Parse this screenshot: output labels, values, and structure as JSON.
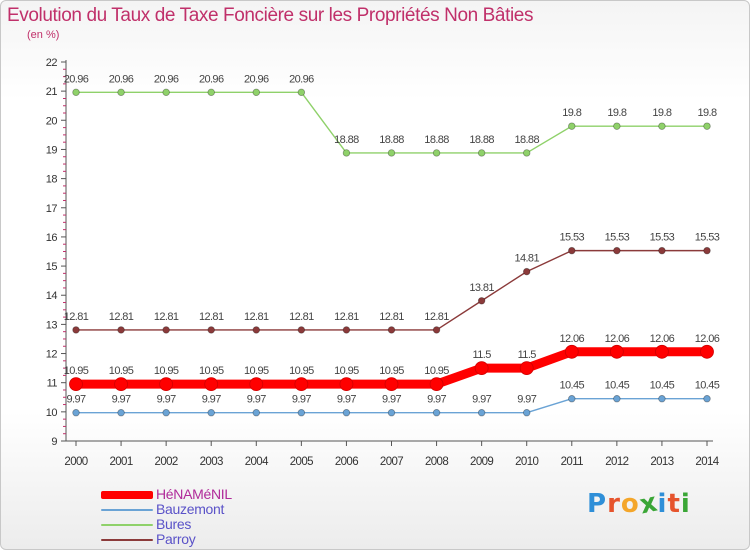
{
  "title": "Evolution du Taux de Taxe Foncière sur les Propriétés Non Bâties",
  "subtitle": "(en %)",
  "colors": {
    "accent": "#c0306a",
    "axis": "#555555",
    "tick_text": "#333333"
  },
  "chart_data": {
    "type": "line",
    "title": "Evolution du Taux de Taxe Foncière sur les Propriétés Non Bâties",
    "ylabel": "(en %)",
    "xlabel": "",
    "x": [
      "2000",
      "2001",
      "2002",
      "2003",
      "2004",
      "2005",
      "2006",
      "2007",
      "2008",
      "2009",
      "2010",
      "2011",
      "2012",
      "2013",
      "2014"
    ],
    "ylim": [
      9,
      22
    ],
    "yticks": [
      "9",
      "10",
      "11",
      "12",
      "13",
      "14",
      "15",
      "16",
      "17",
      "18",
      "19",
      "20",
      "21",
      "22"
    ],
    "grid": false,
    "legend_position": "bottom-left",
    "series": [
      {
        "name": "HéNAMéNIL",
        "color": "#ff0000",
        "values": [
          10.95,
          10.95,
          10.95,
          10.95,
          10.95,
          10.95,
          10.95,
          10.95,
          10.95,
          11.5,
          11.5,
          12.06,
          12.06,
          12.06,
          12.06
        ],
        "labels": [
          "10.95",
          "10.95",
          "10.95",
          "10.95",
          "10.95",
          "10.95",
          "10.95",
          "10.95",
          "10.95",
          "11.5",
          "11.5",
          "12.06",
          "12.06",
          "12.06",
          "12.06"
        ]
      },
      {
        "name": "Bauzemont",
        "color": "#6aa3d5",
        "values": [
          9.97,
          9.97,
          9.97,
          9.97,
          9.97,
          9.97,
          9.97,
          9.97,
          9.97,
          9.97,
          9.97,
          10.45,
          10.45,
          10.45,
          10.45
        ],
        "labels": [
          "9.97",
          "9.97",
          "9.97",
          "9.97",
          "9.97",
          "9.97",
          "9.97",
          "9.97",
          "9.97",
          "9.97",
          "9.97",
          "10.45",
          "10.45",
          "10.45",
          "10.45"
        ]
      },
      {
        "name": "Bures",
        "color": "#8fd16a",
        "values": [
          20.96,
          20.96,
          20.96,
          20.96,
          20.96,
          20.96,
          18.88,
          18.88,
          18.88,
          18.88,
          18.88,
          19.8,
          19.8,
          19.8,
          19.8
        ],
        "labels": [
          "20.96",
          "20.96",
          "20.96",
          "20.96",
          "20.96",
          "20.96",
          "18.88",
          "18.88",
          "18.88",
          "18.88",
          "18.88",
          "19.8",
          "19.8",
          "19.8",
          "19.8"
        ]
      },
      {
        "name": "Parroy",
        "color": "#8b3a3a",
        "values": [
          12.81,
          12.81,
          12.81,
          12.81,
          12.81,
          12.81,
          12.81,
          12.81,
          12.81,
          13.81,
          14.81,
          15.53,
          15.53,
          15.53,
          15.53
        ],
        "labels": [
          "12.81",
          "12.81",
          "12.81",
          "12.81",
          "12.81",
          "12.81",
          "12.81",
          "12.81",
          "12.81",
          "13.81",
          "14.81",
          "15.53",
          "15.53",
          "15.53",
          "15.53"
        ]
      }
    ]
  },
  "logo": {
    "letters": [
      "P",
      "r",
      "o",
      "x",
      "i",
      "t",
      "i"
    ],
    "colors": [
      "#2f8fd8",
      "#e6542d",
      "#f4a62a",
      "#3aa636",
      "#2f8fd8",
      "#e6542d",
      "#3aa636"
    ]
  }
}
